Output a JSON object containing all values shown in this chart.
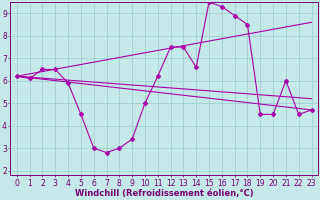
{
  "xlabel": "Windchill (Refroidissement éolien,°C)",
  "background_color": "#c5e8e8",
  "line_color": "#aa00aa",
  "grid_color": "#99cccc",
  "xlim": [
    -0.5,
    23.5
  ],
  "ylim": [
    1.8,
    9.5
  ],
  "xticks": [
    0,
    1,
    2,
    3,
    4,
    5,
    6,
    7,
    8,
    9,
    10,
    11,
    12,
    13,
    14,
    15,
    16,
    17,
    18,
    19,
    20,
    21,
    22,
    23
  ],
  "yticks": [
    2,
    3,
    4,
    5,
    6,
    7,
    8,
    9
  ],
  "main_line": {
    "x": [
      0,
      1,
      2,
      3,
      4,
      5,
      6,
      7,
      8,
      9,
      10,
      11,
      12,
      13,
      14,
      15,
      16,
      17,
      18,
      19,
      20,
      21,
      22,
      23
    ],
    "y": [
      6.2,
      6.1,
      6.5,
      6.5,
      5.9,
      4.5,
      3.0,
      2.8,
      3.0,
      3.4,
      5.0,
      6.2,
      7.5,
      7.5,
      6.6,
      9.5,
      9.3,
      8.9,
      8.5,
      4.5,
      4.5,
      6.0,
      4.5,
      4.7
    ]
  },
  "trend_lines": [
    {
      "x": [
        0,
        23
      ],
      "y": [
        6.2,
        4.7
      ]
    },
    {
      "x": [
        0,
        23
      ],
      "y": [
        6.2,
        5.2
      ]
    },
    {
      "x": [
        0,
        23
      ],
      "y": [
        6.2,
        8.6
      ]
    }
  ],
  "figsize": [
    3.2,
    2.0
  ],
  "dpi": 100,
  "tick_label_size": 5.5,
  "xlabel_size": 6.0,
  "marker": "D",
  "marker_size": 2.0,
  "linewidth": 0.8,
  "axis_color": "#770077",
  "spine_color": "#770077"
}
